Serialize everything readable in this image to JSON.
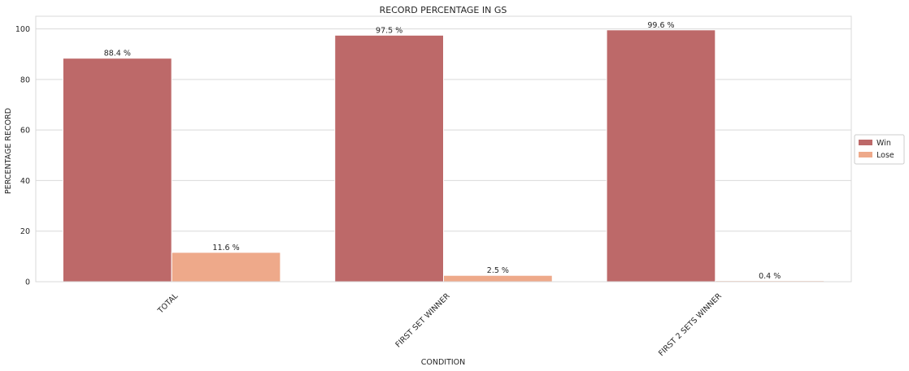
{
  "chart_data": {
    "type": "bar",
    "title": "RECORD PERCENTAGE IN GS",
    "xlabel": "CONDITION",
    "ylabel": "PERCENTAGE RECORD",
    "categories": [
      "TOTAL",
      "FIRST SET WINNER",
      "FIRST 2 SETS WINNER"
    ],
    "series": [
      {
        "name": "Win",
        "values": [
          88.4,
          97.5,
          99.6
        ],
        "labels": [
          "88.4 %",
          "97.5 %",
          "99.6 %"
        ],
        "color": "#bd6969"
      },
      {
        "name": "Lose",
        "values": [
          11.6,
          2.5,
          0.4
        ],
        "labels": [
          "11.6 %",
          "2.5 %",
          "0.4 %"
        ],
        "color": "#eea98a"
      }
    ],
    "ylim": [
      0,
      105
    ],
    "yticks": [
      0,
      20,
      40,
      60,
      80,
      100
    ],
    "grid": true,
    "legend_position": "right",
    "colors": {
      "grid": "#d9d9d9",
      "frame": "#d9d9d9",
      "text": "#262626"
    }
  }
}
